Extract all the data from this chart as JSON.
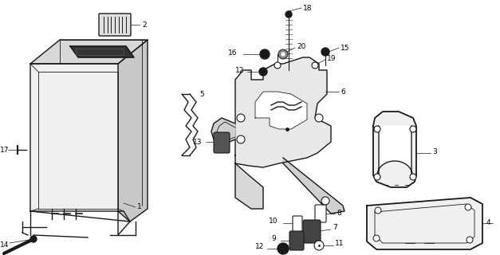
{
  "bg_color": "#ffffff",
  "lc": "#1a1a1a",
  "fig_width": 6.27,
  "fig_height": 3.2,
  "dpi": 100,
  "label_fs": 6.5,
  "lw": 1.0,
  "lw_thin": 0.6
}
